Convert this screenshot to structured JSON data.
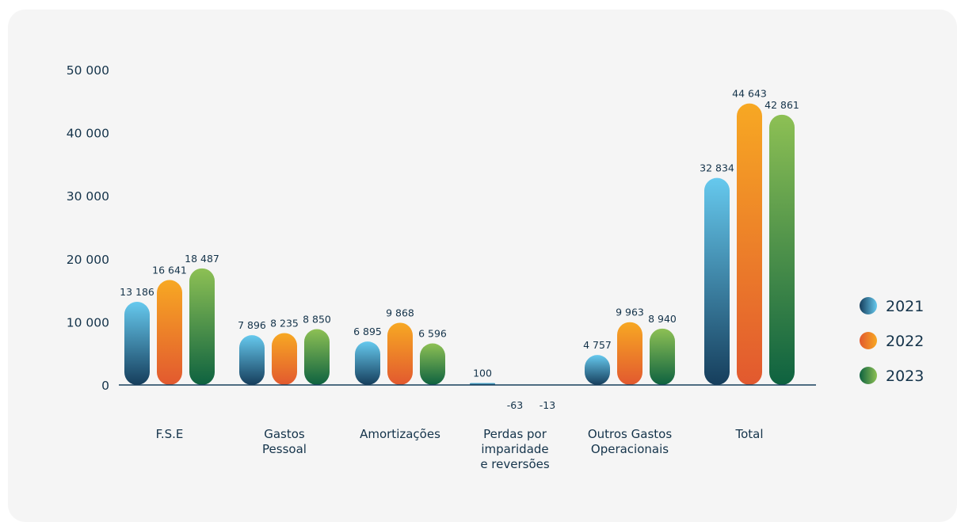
{
  "chart_data": {
    "type": "bar",
    "categories": [
      [
        "F.S.E"
      ],
      [
        "Gastos",
        "Pessoal"
      ],
      [
        "Amortizações"
      ],
      [
        "Perdas por",
        "imparidade",
        "e reversões"
      ],
      [
        "Outros Gastos",
        "Operacionais"
      ],
      [
        "Total"
      ]
    ],
    "series": [
      {
        "name": "2021",
        "color_top": "#66c9ee",
        "color_bottom": "#163e5c",
        "values": [
          13186,
          7896,
          6895,
          100,
          4757,
          32834
        ],
        "labels": [
          "13 186",
          "7 896",
          "6 895",
          "100",
          "4 757",
          "32 834"
        ]
      },
      {
        "name": "2022",
        "color_top": "#f7a823",
        "color_bottom": "#e2592f",
        "values": [
          16641,
          8235,
          9868,
          -63,
          9963,
          44643
        ],
        "labels": [
          "16 641",
          "8 235",
          "9 868",
          "-63",
          "9 963",
          "44 643"
        ]
      },
      {
        "name": "2023",
        "color_top": "#8dc054",
        "color_bottom": "#0e6240",
        "values": [
          18487,
          8850,
          6596,
          -13,
          8940,
          42861
        ],
        "labels": [
          "18 487",
          "8 850",
          "6 596",
          "-13",
          "8 940",
          "42 861"
        ]
      }
    ],
    "yticks": [
      0,
      10000,
      20000,
      30000,
      40000,
      50000
    ],
    "ytick_labels": [
      "0",
      "10 000",
      "20 000",
      "30 000",
      "40 000",
      "50 000"
    ],
    "ylim": [
      0,
      50000
    ],
    "grid": false,
    "legend_position": "right"
  }
}
